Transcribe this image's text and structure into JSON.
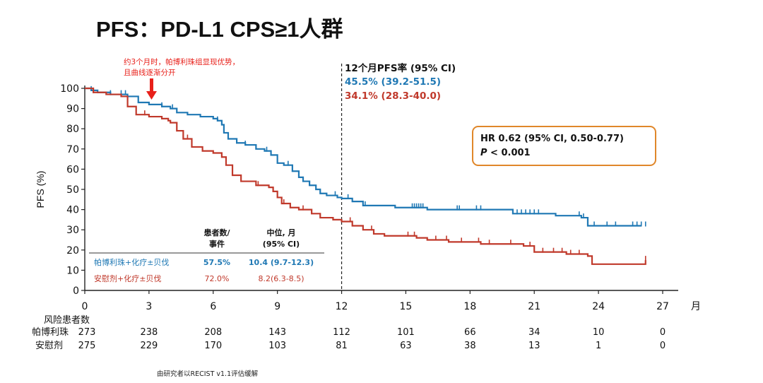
{
  "title": "PFS：PD-L1 CPS≥1人群",
  "annotation": {
    "line1": "约3个月时，帕博利珠组显现优势，",
    "line2": "且曲线逐渐分开",
    "arrow_color": "#e8201a"
  },
  "rate_panel": {
    "heading": "12个月PFS率 (95% CI)",
    "rate_pembro": "45.5% (39.2-51.5)",
    "rate_placebo": "34.1% (28.3-40.0)"
  },
  "hr_box": {
    "line1": "HR 0.62 (95% CI, 0.50-0.77)",
    "p_label": "P",
    "p_value": " < 0.001",
    "border_color": "#e0872a"
  },
  "summary_table": {
    "col1_header_1": "患者数/",
    "col1_header_2": "事件",
    "col2_header_1": "中位, 月",
    "col2_header_2": "(95% CI)",
    "rows": [
      {
        "label": "帕博利珠+化疗±贝伐",
        "events": "57.5%",
        "median": "10.4 (9.7-12.3)",
        "color": "#1f78b4"
      },
      {
        "label": "安慰剂+化疗±贝伐",
        "events": "72.0%",
        "median": "8.2(6.3-8.5)",
        "color": "#c0392b"
      }
    ]
  },
  "risk_table": {
    "header": "风险患者数",
    "rows": [
      {
        "label": "帕博利珠",
        "values": [
          "273",
          "238",
          "208",
          "143",
          "112",
          "101",
          "66",
          "34",
          "10",
          "0"
        ]
      },
      {
        "label": "安慰剂",
        "values": [
          "275",
          "229",
          "170",
          "103",
          "81",
          "63",
          "38",
          "13",
          "1",
          "0"
        ]
      }
    ]
  },
  "footnote": "由研究者以RECIST v1.1评估缓解",
  "chart_data": {
    "type": "line",
    "title": "PFS：PD-L1 CPS≥1人群",
    "xlabel": "月",
    "ylabel": "PFS (%)",
    "xlim": [
      0,
      27
    ],
    "ylim": [
      0,
      100
    ],
    "x_ticks": [
      0,
      3,
      6,
      9,
      12,
      15,
      18,
      21,
      24,
      27
    ],
    "y_ticks": [
      0,
      10,
      20,
      30,
      40,
      50,
      60,
      70,
      80,
      90,
      100
    ],
    "grid": false,
    "reference_line_x": 12,
    "series": [
      {
        "name": "帕博利珠+化疗±贝伐",
        "color": "#1f78b4",
        "points": [
          [
            0,
            100
          ],
          [
            0.3,
            99
          ],
          [
            0.6,
            98
          ],
          [
            1.2,
            97
          ],
          [
            2,
            96
          ],
          [
            2.5,
            93
          ],
          [
            3,
            92
          ],
          [
            3.6,
            91
          ],
          [
            4,
            90
          ],
          [
            4.3,
            88
          ],
          [
            4.8,
            87
          ],
          [
            5.4,
            86
          ],
          [
            6,
            85
          ],
          [
            6.2,
            84
          ],
          [
            6.4,
            82
          ],
          [
            6.5,
            78
          ],
          [
            6.7,
            75
          ],
          [
            7.1,
            73
          ],
          [
            7.5,
            72
          ],
          [
            8,
            70
          ],
          [
            8.4,
            69
          ],
          [
            8.7,
            67
          ],
          [
            9,
            63
          ],
          [
            9.3,
            62
          ],
          [
            9.7,
            59
          ],
          [
            10,
            56
          ],
          [
            10.2,
            54
          ],
          [
            10.5,
            52
          ],
          [
            10.8,
            50
          ],
          [
            11,
            48
          ],
          [
            11.3,
            47
          ],
          [
            11.8,
            46
          ],
          [
            12,
            45.5
          ],
          [
            12.5,
            44
          ],
          [
            13,
            42
          ],
          [
            14.5,
            41
          ],
          [
            16,
            40
          ],
          [
            20,
            38
          ],
          [
            22,
            37
          ],
          [
            23.2,
            36
          ],
          [
            23.5,
            32
          ],
          [
            26,
            32
          ]
        ],
        "censor_x": [
          0.3,
          1.2,
          1.7,
          1.9,
          3.6,
          4.1,
          6.2,
          7.5,
          8.5,
          9.5,
          11.7,
          12.3,
          13.1,
          15.3,
          15.4,
          15.5,
          15.6,
          15.7,
          15.8,
          17.4,
          17.5,
          18.3,
          18.5,
          20.2,
          20.4,
          20.6,
          20.8,
          21,
          21.2,
          23.1,
          23.3,
          23.5,
          23.8,
          24.4,
          24.8,
          25.6,
          25.8,
          26,
          26.2
        ]
      },
      {
        "name": "安慰剂+化疗±贝伐",
        "color": "#c0392b",
        "points": [
          [
            0,
            100
          ],
          [
            0.4,
            98
          ],
          [
            1,
            97
          ],
          [
            1.7,
            96
          ],
          [
            2,
            91
          ],
          [
            2.4,
            87
          ],
          [
            3,
            86
          ],
          [
            3.6,
            85
          ],
          [
            3.9,
            84
          ],
          [
            4,
            83
          ],
          [
            4.3,
            79
          ],
          [
            4.6,
            75
          ],
          [
            5,
            71
          ],
          [
            5.5,
            69
          ],
          [
            6,
            68
          ],
          [
            6.4,
            66
          ],
          [
            6.6,
            62
          ],
          [
            6.9,
            57
          ],
          [
            7.3,
            54
          ],
          [
            8,
            52
          ],
          [
            8.6,
            51
          ],
          [
            8.8,
            49
          ],
          [
            9,
            46
          ],
          [
            9.2,
            43
          ],
          [
            9.6,
            41
          ],
          [
            10,
            40
          ],
          [
            10.6,
            38
          ],
          [
            11,
            36
          ],
          [
            11.6,
            35
          ],
          [
            12,
            34.1
          ],
          [
            12.5,
            32
          ],
          [
            13,
            30
          ],
          [
            13.5,
            28
          ],
          [
            14,
            27
          ],
          [
            15.5,
            26
          ],
          [
            16,
            25
          ],
          [
            17,
            24
          ],
          [
            18.5,
            23
          ],
          [
            20.5,
            22
          ],
          [
            21,
            19
          ],
          [
            22.5,
            18
          ],
          [
            23.5,
            17
          ],
          [
            23.7,
            13
          ],
          [
            26.2,
            13
          ],
          [
            26.2,
            15
          ]
        ],
        "censor_x": [
          0.4,
          2.8,
          4.3,
          4.8,
          6.4,
          8.1,
          9.3,
          10.2,
          12.4,
          13.4,
          15.1,
          15.4,
          16.4,
          16.9,
          17.6,
          18.4,
          18.9,
          19.9,
          20.8,
          21.4,
          21.9,
          22.3,
          22.7,
          23.1,
          26.2
        ]
      }
    ]
  }
}
